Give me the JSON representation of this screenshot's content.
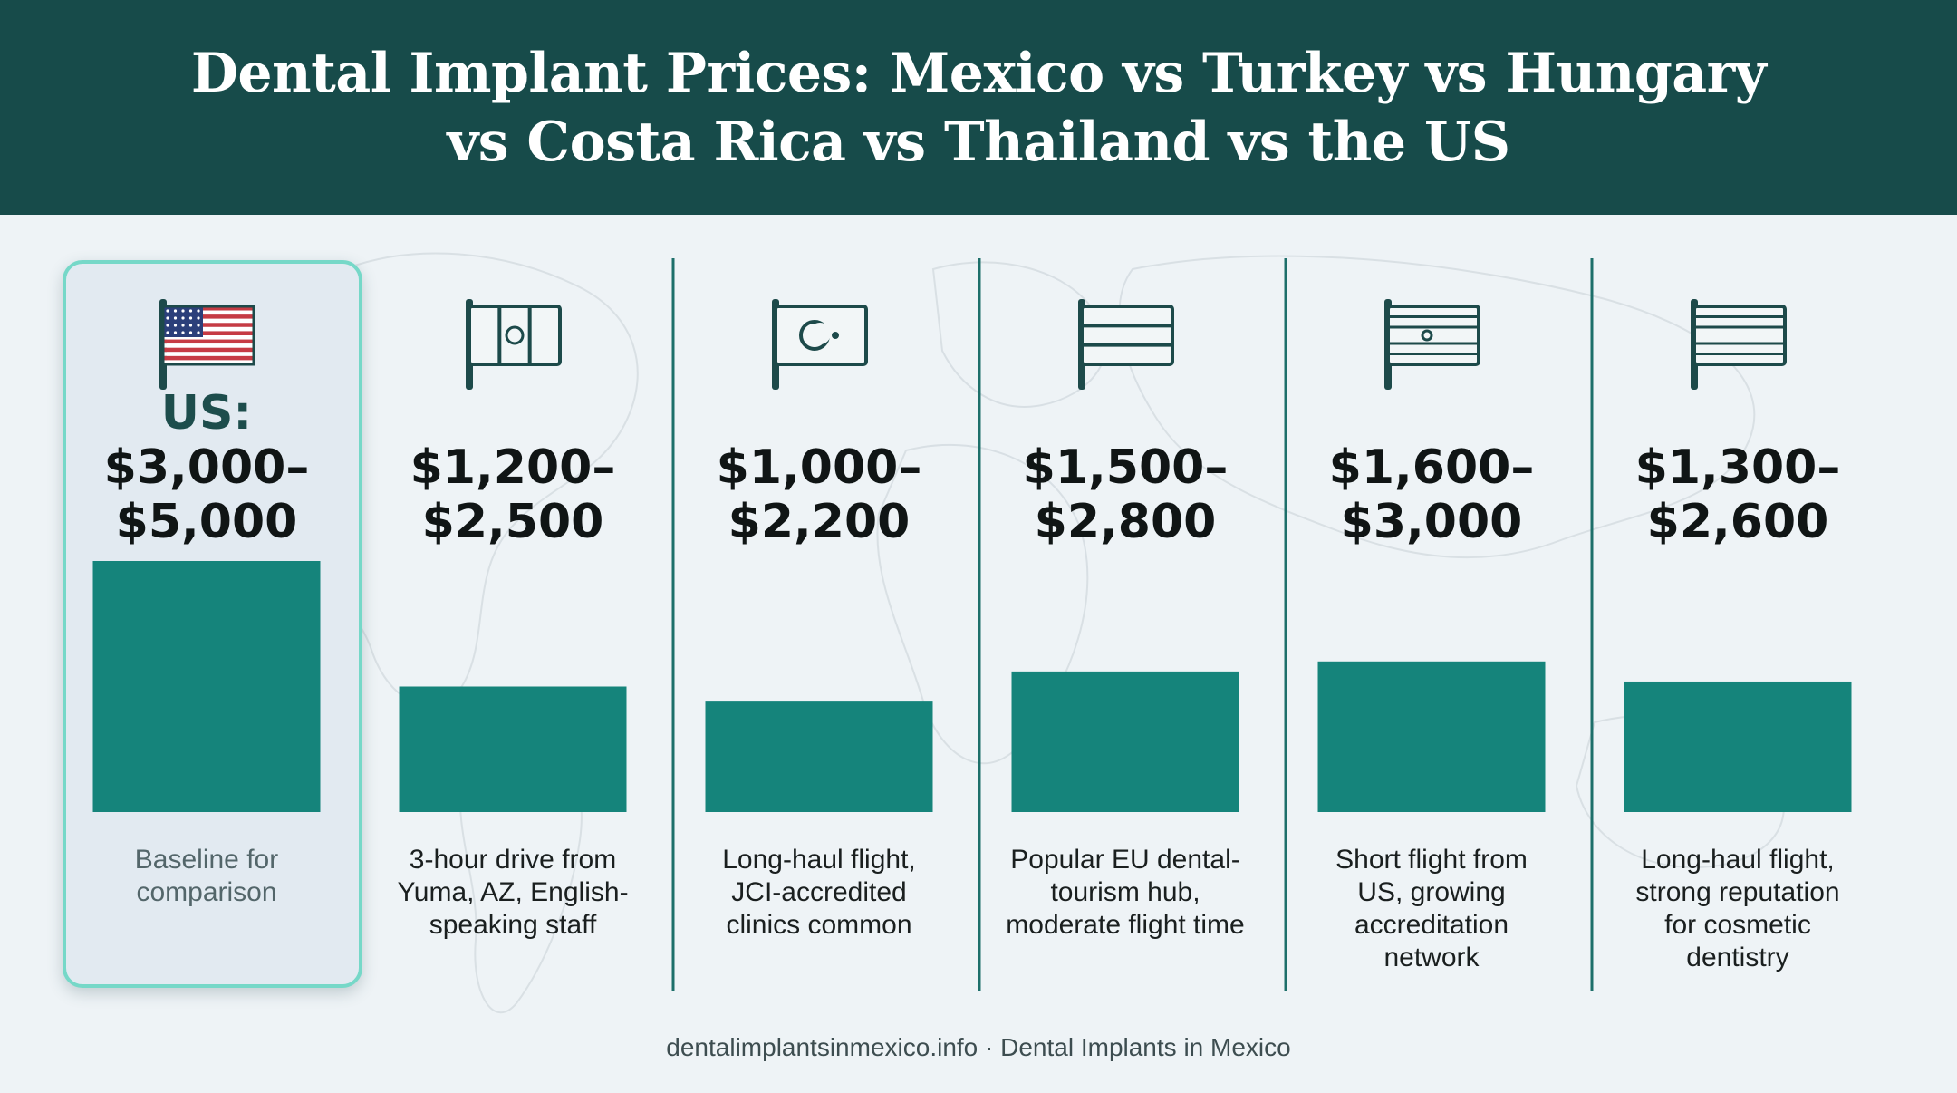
{
  "header": {
    "title_line1": "Dental Implant Prices: Mexico vs Turkey vs Hungary",
    "title_line2": "vs Costa Rica vs Thailand vs the US"
  },
  "chart_data": {
    "type": "bar",
    "title": "Dental Implant Prices: Mexico vs Turkey vs Hungary vs Costa Rica vs Thailand vs the US",
    "unit": "USD",
    "categories": [
      {
        "key": "us",
        "flag": "us-flag-icon",
        "label_lines": [
          "US:",
          "$3,000–",
          "$5,000"
        ],
        "low": 3000,
        "high": 5000,
        "note_lines": [
          "Baseline for",
          "comparison"
        ],
        "highlighted": true
      },
      {
        "key": "mexico",
        "flag": "mexico-flag-icon",
        "label_lines": [
          "$1,200–",
          "$2,500"
        ],
        "low": 1200,
        "high": 2500,
        "note_lines": [
          "3-hour drive from",
          "Yuma, AZ, English-",
          "speaking staff"
        ],
        "highlighted": false
      },
      {
        "key": "turkey",
        "flag": "turkey-flag-icon",
        "label_lines": [
          "$1,000–",
          "$2,200"
        ],
        "low": 1000,
        "high": 2200,
        "note_lines": [
          "Long-haul flight,",
          "JCI-accredited",
          "clinics common"
        ],
        "highlighted": false
      },
      {
        "key": "hungary",
        "flag": "hungary-flag-icon",
        "label_lines": [
          "$1,500–",
          "$2,800"
        ],
        "low": 1500,
        "high": 2800,
        "note_lines": [
          "Popular EU dental-",
          "tourism hub,",
          "moderate flight time"
        ],
        "highlighted": false
      },
      {
        "key": "costa-rica",
        "flag": "costa-rica-flag-icon",
        "label_lines": [
          "$1,600–",
          "$3,000"
        ],
        "low": 1600,
        "high": 3000,
        "note_lines": [
          "Short flight from",
          "US, growing",
          "accreditation",
          "network"
        ],
        "highlighted": false
      },
      {
        "key": "thailand",
        "flag": "thailand-flag-icon",
        "label_lines": [
          "$1,300–",
          "$2,600"
        ],
        "low": 1300,
        "high": 2600,
        "note_lines": [
          "Long-haul flight,",
          "strong reputation",
          "for cosmetic",
          "dentistry"
        ],
        "highlighted": false
      }
    ]
  },
  "colors": {
    "header_bg": "#174b4a",
    "bar": "#15847b",
    "highlight_border": "#76d8c8",
    "divider": "#1d6f6a"
  },
  "footer": {
    "text": "dentalimplantsinmexico.info · Dental Implants in Mexico"
  }
}
